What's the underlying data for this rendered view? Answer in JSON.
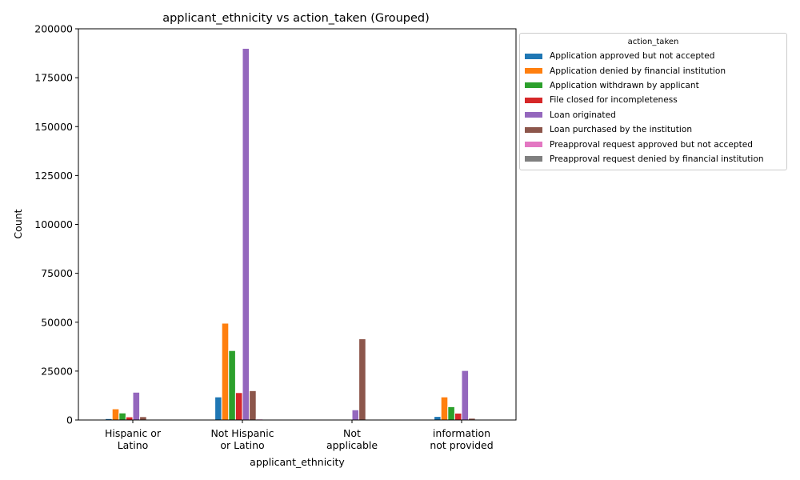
{
  "chart_data": {
    "type": "bar",
    "title": "applicant_ethnicity vs action_taken (Grouped)",
    "xlabel": "applicant_ethnicity",
    "ylabel": "Count",
    "ylim": [
      0,
      200000
    ],
    "yticks": [
      0,
      25000,
      50000,
      75000,
      100000,
      125000,
      150000,
      175000,
      200000
    ],
    "categories": [
      [
        "Hispanic or",
        "Latino"
      ],
      [
        "Not Hispanic",
        "or Latino"
      ],
      [
        "Not",
        "applicable"
      ],
      [
        "information",
        "not provided"
      ]
    ],
    "legend_title": "action_taken",
    "legend_placement": "outside top-right",
    "grid": false,
    "series": [
      {
        "name": "Application approved but not accepted",
        "color": "#1f77b4",
        "values": [
          700,
          11800,
          0,
          1800
        ]
      },
      {
        "name": "Application denied by financial institution",
        "color": "#ff7f0e",
        "values": [
          5700,
          49500,
          0,
          11800
        ]
      },
      {
        "name": "Application withdrawn by applicant",
        "color": "#2ca02c",
        "values": [
          3600,
          35500,
          0,
          6800
        ]
      },
      {
        "name": "File closed for incompleteness",
        "color": "#d62728",
        "values": [
          1600,
          14000,
          0,
          3500
        ]
      },
      {
        "name": "Loan originated",
        "color": "#9467bd",
        "values": [
          14200,
          190000,
          5200,
          25300
        ]
      },
      {
        "name": "Loan purchased by the institution",
        "color": "#8c564b",
        "values": [
          1700,
          15000,
          41500,
          900
        ]
      },
      {
        "name": "Preapproval request approved but not accepted",
        "color": "#e377c2",
        "values": [
          100,
          500,
          0,
          100
        ]
      },
      {
        "name": "Preapproval request denied by financial institution",
        "color": "#7f7f7f",
        "values": [
          50,
          300,
          0,
          50
        ]
      }
    ]
  }
}
